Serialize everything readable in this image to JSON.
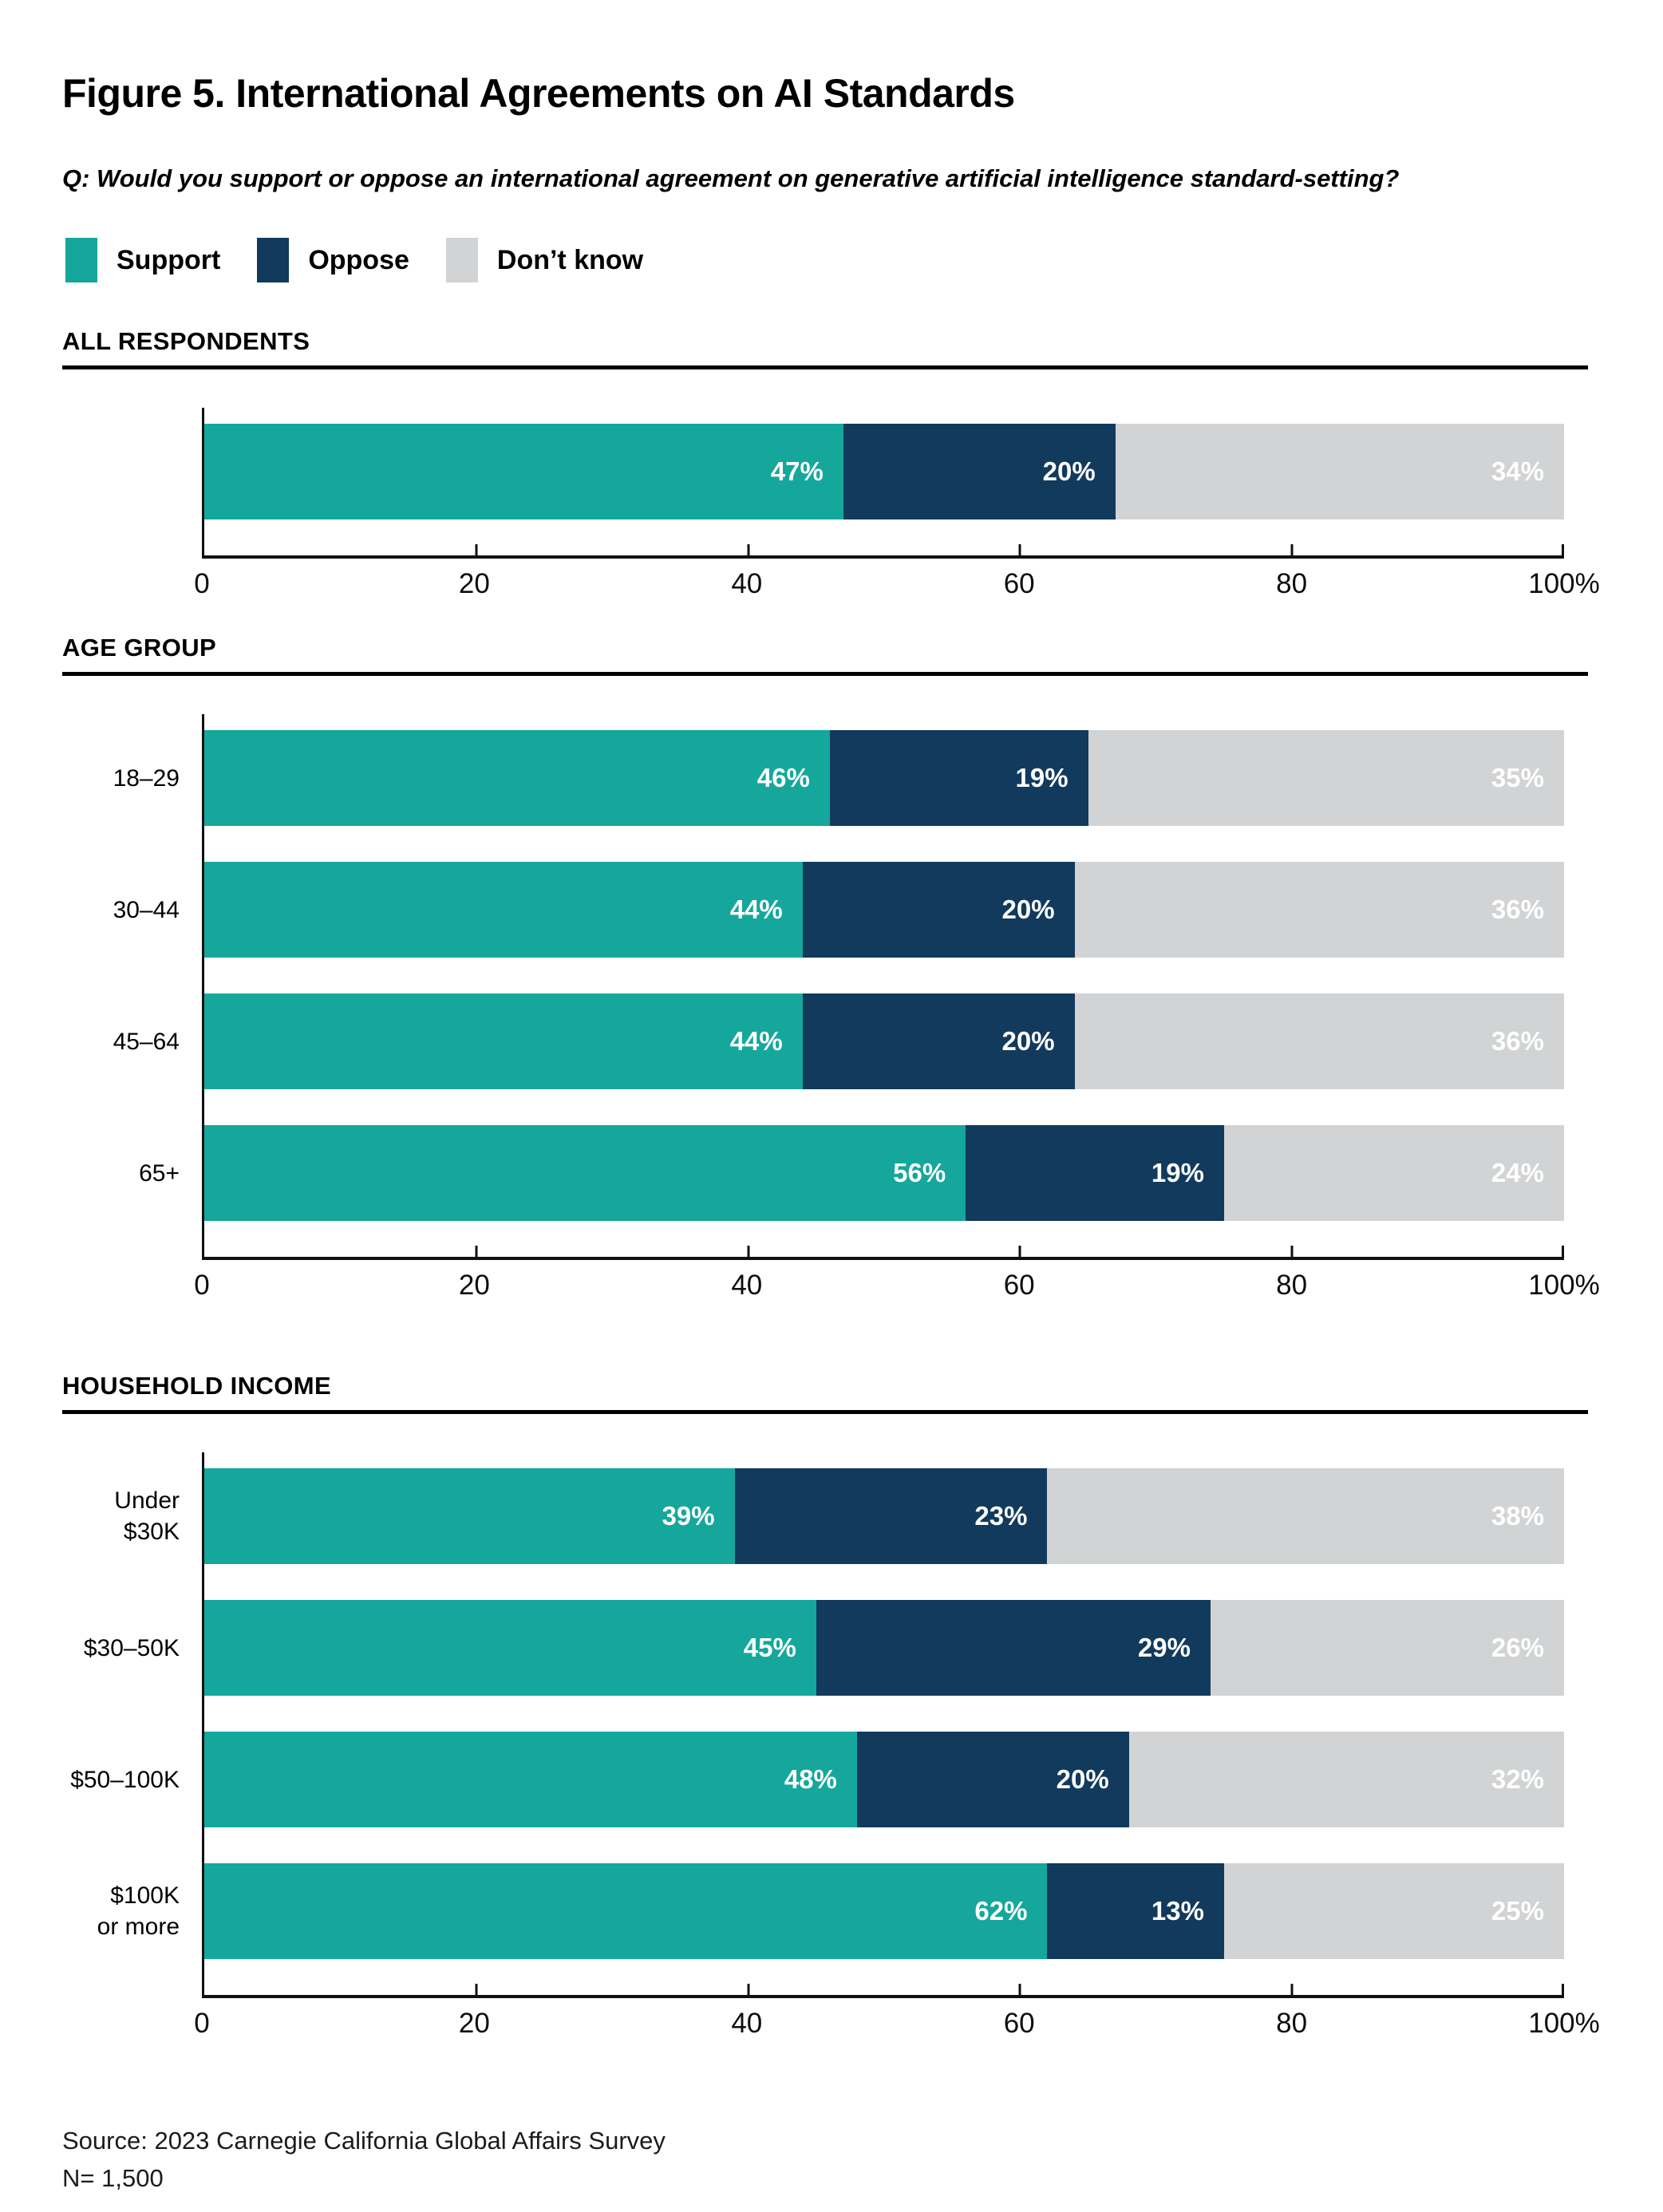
{
  "figure": {
    "title": "Figure 5. International Agreements on AI Standards",
    "question": "Q: Would you support or oppose an international agreement on generative artificial intelligence standard-setting?",
    "source_line1": "Source: 2023 Carnegie California Global Affairs Survey",
    "source_line2": "N= 1,500"
  },
  "legend": [
    {
      "label": "Support",
      "color": "#15A79C"
    },
    {
      "label": "Oppose",
      "color": "#113A5D"
    },
    {
      "label": "Don’t know",
      "color": "#D1D3D4"
    }
  ],
  "chart_data": [
    {
      "type": "bar",
      "stacked": true,
      "title": "ALL RESPONDENTS",
      "categories": [
        ""
      ],
      "series": [
        {
          "name": "Support",
          "values": [
            47
          ]
        },
        {
          "name": "Oppose",
          "values": [
            20
          ]
        },
        {
          "name": "Don’t know",
          "values": [
            34
          ]
        }
      ],
      "xlim": [
        0,
        100
      ],
      "x_ticks": [
        "0",
        "20",
        "40",
        "60",
        "80",
        "100%"
      ],
      "grid": false,
      "legend_position": "top"
    },
    {
      "type": "bar",
      "stacked": true,
      "title": "AGE GROUP",
      "categories": [
        "18–29",
        "30–44",
        "45–64",
        "65+"
      ],
      "series": [
        {
          "name": "Support",
          "values": [
            46,
            44,
            44,
            56
          ]
        },
        {
          "name": "Oppose",
          "values": [
            19,
            20,
            20,
            19
          ]
        },
        {
          "name": "Don’t know",
          "values": [
            35,
            36,
            36,
            24
          ]
        }
      ],
      "xlim": [
        0,
        100
      ],
      "x_ticks": [
        "0",
        "20",
        "40",
        "60",
        "80",
        "100%"
      ],
      "grid": false,
      "legend_position": "top"
    },
    {
      "type": "bar",
      "stacked": true,
      "title": "HOUSEHOLD INCOME",
      "categories": [
        "Under $30K",
        "$30–50K",
        "$50–100K",
        "$100K\nor more"
      ],
      "series": [
        {
          "name": "Support",
          "values": [
            39,
            45,
            48,
            62
          ]
        },
        {
          "name": "Oppose",
          "values": [
            23,
            29,
            20,
            13
          ]
        },
        {
          "name": "Don’t know",
          "values": [
            38,
            26,
            32,
            25
          ]
        }
      ],
      "xlim": [
        0,
        100
      ],
      "x_ticks": [
        "0",
        "20",
        "40",
        "60",
        "80",
        "100%"
      ],
      "grid": false,
      "legend_position": "top"
    }
  ]
}
